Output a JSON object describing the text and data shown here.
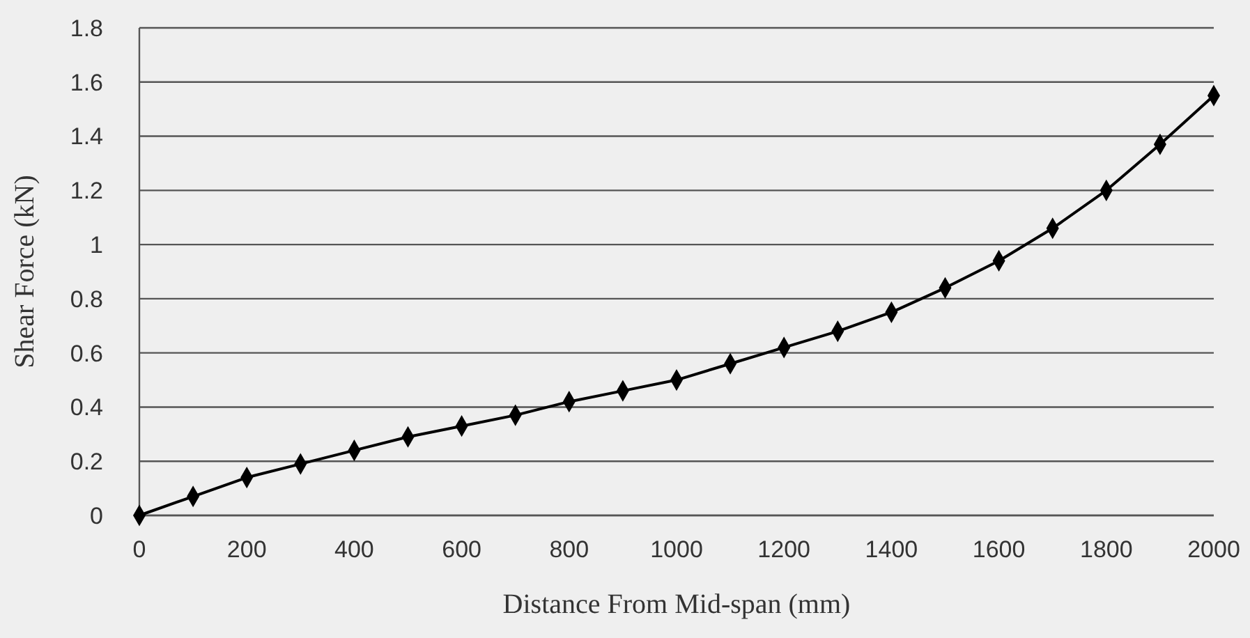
{
  "chart_data": {
    "type": "line",
    "xlabel": "Distance From Mid-span (mm)",
    "ylabel": "Shear Force (kN)",
    "x": [
      0,
      100,
      200,
      300,
      400,
      500,
      600,
      700,
      800,
      900,
      1000,
      1100,
      1200,
      1300,
      1400,
      1500,
      1600,
      1700,
      1800,
      1900,
      2000
    ],
    "series": [
      {
        "color": "#000000",
        "values": [
          0,
          0.07,
          0.14,
          0.19,
          0.24,
          0.29,
          0.33,
          0.37,
          0.42,
          0.46,
          0.5,
          0.56,
          0.62,
          0.68,
          0.75,
          0.84,
          0.94,
          1.06,
          1.2,
          1.37,
          1.55
        ]
      }
    ],
    "xlim": [
      0,
      2000
    ],
    "xticks": [
      0,
      200,
      400,
      600,
      800,
      1000,
      1200,
      1400,
      1600,
      1800,
      2000
    ],
    "ylim": [
      0,
      1.8
    ],
    "yticks": [
      0,
      0.2,
      0.4,
      0.6,
      0.8,
      1,
      1.2,
      1.4,
      1.6,
      1.8
    ],
    "grid": "y",
    "marker": "diamond",
    "line_style": "solid"
  }
}
